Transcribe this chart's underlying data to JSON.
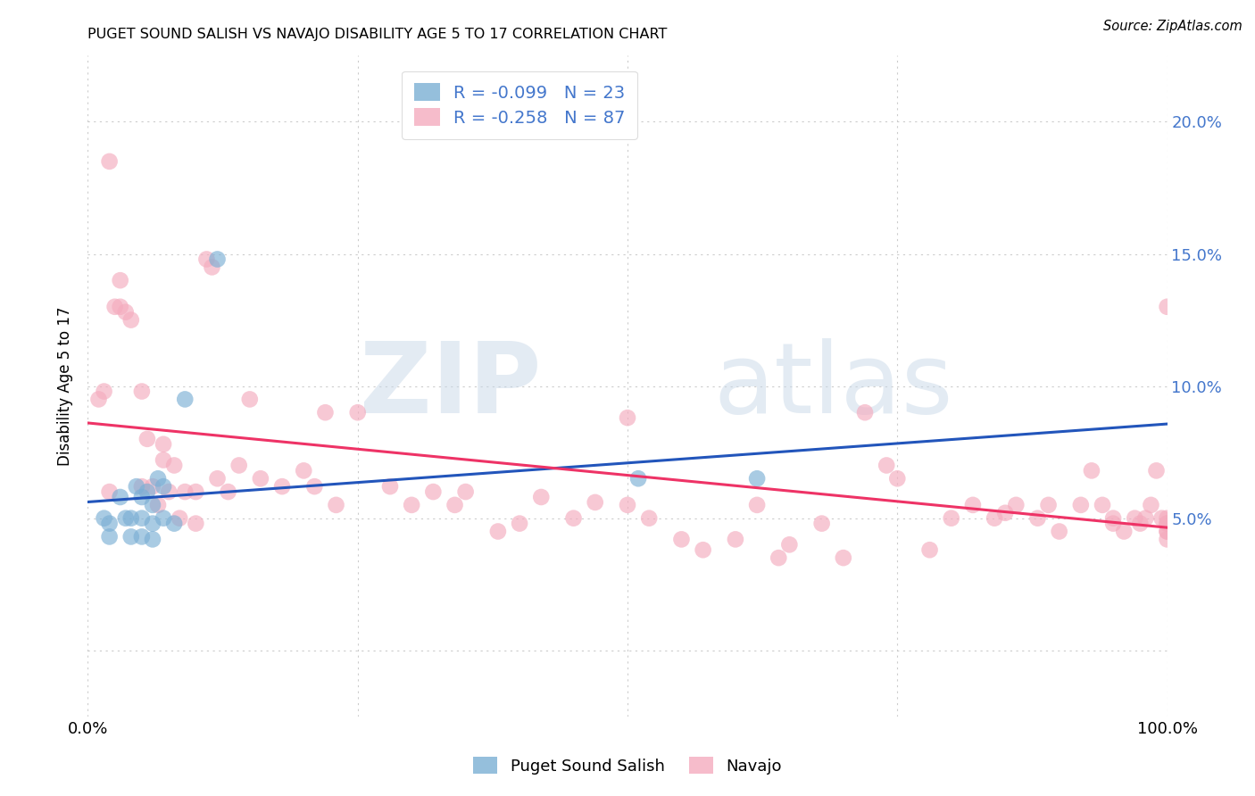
{
  "title": "PUGET SOUND SALISH VS NAVAJO DISABILITY AGE 5 TO 17 CORRELATION CHART",
  "source": "Source: ZipAtlas.com",
  "ylabel": "Disability Age 5 to 17",
  "xlabel": "",
  "xlim": [
    0.0,
    1.0
  ],
  "ylim": [
    -0.025,
    0.225
  ],
  "yticks": [
    0.0,
    0.05,
    0.1,
    0.15,
    0.2
  ],
  "right_ytick_labels": [
    "",
    "5.0%",
    "10.0%",
    "15.0%",
    "20.0%"
  ],
  "xticks": [
    0.0,
    0.25,
    0.5,
    0.75,
    1.0
  ],
  "xtick_labels": [
    "0.0%",
    "",
    "",
    "",
    "100.0%"
  ],
  "blue_R": -0.099,
  "blue_N": 23,
  "pink_R": -0.258,
  "pink_N": 87,
  "blue_color": "#7BAFD4",
  "pink_color": "#F4ABBE",
  "blue_line_color": "#2255BB",
  "pink_line_color": "#EE3366",
  "watermark_zip": "ZIP",
  "watermark_atlas": "atlas",
  "legend_label_blue": "Puget Sound Salish",
  "legend_label_pink": "Navajo",
  "blue_scatter_x": [
    0.015,
    0.02,
    0.02,
    0.03,
    0.035,
    0.04,
    0.04,
    0.045,
    0.05,
    0.05,
    0.05,
    0.055,
    0.06,
    0.06,
    0.06,
    0.065,
    0.07,
    0.07,
    0.08,
    0.09,
    0.12,
    0.51,
    0.62
  ],
  "blue_scatter_y": [
    0.05,
    0.048,
    0.043,
    0.058,
    0.05,
    0.05,
    0.043,
    0.062,
    0.058,
    0.05,
    0.043,
    0.06,
    0.055,
    0.048,
    0.042,
    0.065,
    0.062,
    0.05,
    0.048,
    0.095,
    0.148,
    0.065,
    0.065
  ],
  "pink_scatter_x": [
    0.01,
    0.015,
    0.02,
    0.02,
    0.025,
    0.03,
    0.03,
    0.035,
    0.04,
    0.05,
    0.05,
    0.055,
    0.06,
    0.065,
    0.07,
    0.07,
    0.075,
    0.08,
    0.085,
    0.09,
    0.1,
    0.1,
    0.11,
    0.115,
    0.12,
    0.13,
    0.14,
    0.15,
    0.16,
    0.18,
    0.2,
    0.21,
    0.22,
    0.23,
    0.25,
    0.28,
    0.3,
    0.32,
    0.34,
    0.35,
    0.38,
    0.4,
    0.42,
    0.45,
    0.47,
    0.5,
    0.5,
    0.52,
    0.55,
    0.57,
    0.6,
    0.62,
    0.64,
    0.65,
    0.68,
    0.7,
    0.72,
    0.74,
    0.75,
    0.78,
    0.8,
    0.82,
    0.84,
    0.85,
    0.86,
    0.88,
    0.89,
    0.9,
    0.92,
    0.93,
    0.94,
    0.95,
    0.95,
    0.96,
    0.97,
    0.975,
    0.98,
    0.985,
    0.99,
    0.995,
    1.0,
    1.0,
    1.0,
    1.0,
    1.0,
    1.0,
    1.0
  ],
  "pink_scatter_y": [
    0.095,
    0.098,
    0.06,
    0.185,
    0.13,
    0.14,
    0.13,
    0.128,
    0.125,
    0.062,
    0.098,
    0.08,
    0.062,
    0.055,
    0.078,
    0.072,
    0.06,
    0.07,
    0.05,
    0.06,
    0.048,
    0.06,
    0.148,
    0.145,
    0.065,
    0.06,
    0.07,
    0.095,
    0.065,
    0.062,
    0.068,
    0.062,
    0.09,
    0.055,
    0.09,
    0.062,
    0.055,
    0.06,
    0.055,
    0.06,
    0.045,
    0.048,
    0.058,
    0.05,
    0.056,
    0.055,
    0.088,
    0.05,
    0.042,
    0.038,
    0.042,
    0.055,
    0.035,
    0.04,
    0.048,
    0.035,
    0.09,
    0.07,
    0.065,
    0.038,
    0.05,
    0.055,
    0.05,
    0.052,
    0.055,
    0.05,
    0.055,
    0.045,
    0.055,
    0.068,
    0.055,
    0.048,
    0.05,
    0.045,
    0.05,
    0.048,
    0.05,
    0.055,
    0.068,
    0.05,
    0.045,
    0.045,
    0.05,
    0.048,
    0.042,
    0.048,
    0.13
  ],
  "background_color": "#FFFFFF",
  "grid_color": "#CCCCCC",
  "right_ytick_color": "#4477CC"
}
